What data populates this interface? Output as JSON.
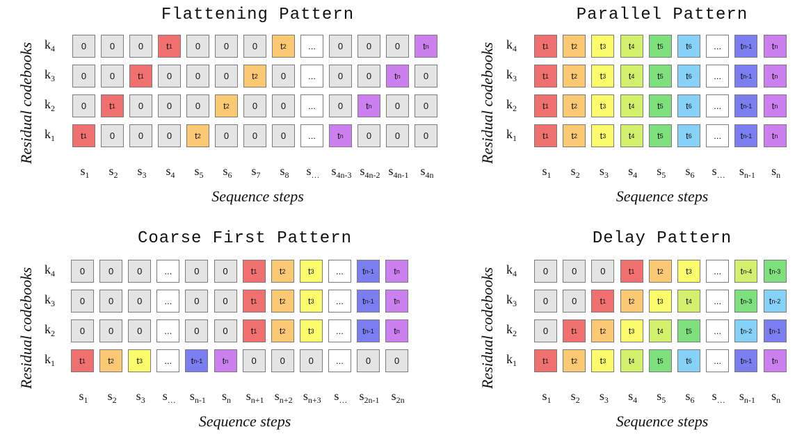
{
  "colors": {
    "zero": "#e4e4e4",
    "dots": "#ffffff",
    "t1": "#f07070",
    "t2": "#fbc874",
    "t3": "#fbfb6b",
    "t4": "#d3f06c",
    "t5": "#7de07d",
    "t6": "#86d1f8",
    "tn-4": "#d3f06c",
    "tn-3": "#7de07d",
    "tn-2": "#86d1f8",
    "tn-1": "#7b7ef0",
    "tn": "#cc80f0"
  },
  "panels": [
    {
      "title": "Flattening Pattern",
      "ylabel": "Residual codebooks",
      "xlabel": "Sequence steps",
      "row_labels": [
        "k4",
        "k3",
        "k2",
        "k1"
      ],
      "col_labels": [
        "s1",
        "s2",
        "s3",
        "s4",
        "s5",
        "s6",
        "s7",
        "s8",
        "s…",
        "s4n-3",
        "s4n-2",
        "s4n-1",
        "s4n"
      ],
      "grid": [
        [
          "0",
          "0",
          "0",
          "t1",
          "0",
          "0",
          "0",
          "t2",
          "...",
          "0",
          "0",
          "0",
          "tn"
        ],
        [
          "0",
          "0",
          "t1",
          "0",
          "0",
          "0",
          "t2",
          "0",
          "...",
          "0",
          "0",
          "tn",
          "0"
        ],
        [
          "0",
          "t1",
          "0",
          "0",
          "0",
          "t2",
          "0",
          "0",
          "...",
          "0",
          "tn",
          "0",
          "0"
        ],
        [
          "t1",
          "0",
          "0",
          "0",
          "t2",
          "0",
          "0",
          "0",
          "...",
          "tn",
          "0",
          "0",
          "0"
        ]
      ]
    },
    {
      "title": "Parallel Pattern",
      "ylabel": "Residual codebooks",
      "xlabel": "Sequence steps",
      "row_labels": [
        "k4",
        "k3",
        "k2",
        "k1"
      ],
      "col_labels": [
        "s1",
        "s2",
        "s3",
        "s4",
        "s5",
        "s6",
        "s…",
        "sn-1",
        "sn"
      ],
      "grid": [
        [
          "t1",
          "t2",
          "t3",
          "t4",
          "t5",
          "t6",
          "...",
          "tn-1",
          "tn"
        ],
        [
          "t1",
          "t2",
          "t3",
          "t4",
          "t5",
          "t6",
          "...",
          "tn-1",
          "tn"
        ],
        [
          "t1",
          "t2",
          "t3",
          "t4",
          "t5",
          "t6",
          "...",
          "tn-1",
          "tn"
        ],
        [
          "t1",
          "t2",
          "t3",
          "t4",
          "t5",
          "t6",
          "...",
          "tn-1",
          "tn"
        ]
      ]
    },
    {
      "title": "Coarse First Pattern",
      "ylabel": "Residual codebooks",
      "xlabel": "Sequence steps",
      "row_labels": [
        "k4",
        "k3",
        "k2",
        "k1"
      ],
      "col_labels": [
        "s1",
        "s2",
        "s3",
        "s…",
        "sn-1",
        "sn",
        "sn+1",
        "sn+2",
        "sn+3",
        "s…",
        "s2n-1",
        "s2n"
      ],
      "grid": [
        [
          "0",
          "0",
          "0",
          "...",
          "0",
          "0",
          "t1",
          "t2",
          "t3",
          "...",
          "tn-1",
          "tn"
        ],
        [
          "0",
          "0",
          "0",
          "...",
          "0",
          "0",
          "t1",
          "t2",
          "t3",
          "...",
          "tn-1",
          "tn"
        ],
        [
          "0",
          "0",
          "0",
          "...",
          "0",
          "0",
          "t1",
          "t2",
          "t3",
          "...",
          "tn-1",
          "tn"
        ],
        [
          "t1",
          "t2",
          "t3",
          "...",
          "tn-1",
          "tn",
          "0",
          "0",
          "0",
          "...",
          "0",
          "0"
        ]
      ]
    },
    {
      "title": "Delay Pattern",
      "ylabel": "Residual codebooks",
      "xlabel": "Sequence steps",
      "row_labels": [
        "k4",
        "k3",
        "k2",
        "k1"
      ],
      "col_labels": [
        "s1",
        "s2",
        "s3",
        "s4",
        "s5",
        "s6",
        "s…",
        "sn-1",
        "sn"
      ],
      "grid": [
        [
          "0",
          "0",
          "0",
          "t1",
          "t2",
          "t3",
          "...",
          "tn-4",
          "tn-3"
        ],
        [
          "0",
          "0",
          "t1",
          "t2",
          "t3",
          "t4",
          "...",
          "tn-3",
          "tn-2"
        ],
        [
          "0",
          "t1",
          "t2",
          "t3",
          "t4",
          "t5",
          "...",
          "tn-2",
          "tn-1"
        ],
        [
          "t1",
          "t2",
          "t3",
          "t4",
          "t5",
          "t6",
          "...",
          "tn-1",
          "tn"
        ]
      ]
    }
  ]
}
